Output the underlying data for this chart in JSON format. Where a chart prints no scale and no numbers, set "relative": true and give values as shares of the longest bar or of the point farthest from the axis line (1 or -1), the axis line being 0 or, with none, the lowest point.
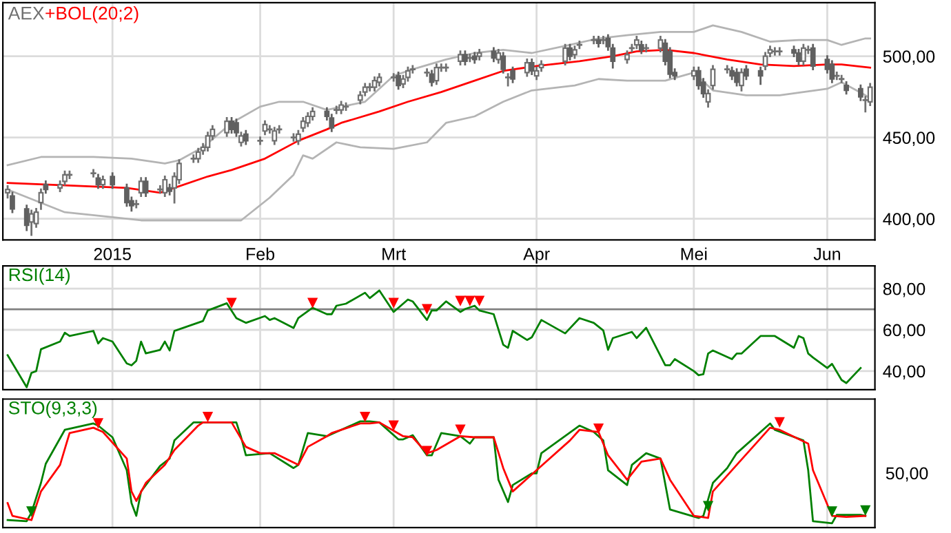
{
  "chart_data": [
    {
      "type": "candlestick",
      "title": "AEX",
      "xlim": [
        "2014-12-10",
        "2015-06-11"
      ],
      "ylim": [
        387,
        533
      ],
      "xticks": [
        {
          "value": "2015-01-02",
          "label": "2015"
        },
        {
          "value": "2015-02-02",
          "label": "Feb"
        },
        {
          "value": "2015-03-02",
          "label": "Mrt"
        },
        {
          "value": "2015-04-01",
          "label": "Apr"
        },
        {
          "value": "2015-05-04",
          "label": "Mei"
        },
        {
          "value": "2015-06-01",
          "label": "Jun"
        }
      ],
      "yticks": [
        {
          "value": 400,
          "label": "400,00"
        },
        {
          "value": 450,
          "label": "450,00"
        },
        {
          "value": 500,
          "label": "500,00"
        }
      ],
      "grid": true,
      "x": [
        "2014-12-11",
        "2014-12-12",
        "2014-12-15",
        "2014-12-16",
        "2014-12-17",
        "2014-12-18",
        "2014-12-19",
        "2014-12-22",
        "2014-12-23",
        "2014-12-24",
        "2014-12-29",
        "2014-12-30",
        "2014-12-31",
        "2015-01-02",
        "2015-01-05",
        "2015-01-06",
        "2015-01-07",
        "2015-01-08",
        "2015-01-09",
        "2015-01-12",
        "2015-01-13",
        "2015-01-14",
        "2015-01-15",
        "2015-01-16",
        "2015-01-19",
        "2015-01-20",
        "2015-01-21",
        "2015-01-22",
        "2015-01-23",
        "2015-01-26",
        "2015-01-27",
        "2015-01-28",
        "2015-01-29",
        "2015-01-30",
        "2015-02-02",
        "2015-02-03",
        "2015-02-04",
        "2015-02-05",
        "2015-02-06",
        "2015-02-09",
        "2015-02-10",
        "2015-02-11",
        "2015-02-12",
        "2015-02-13",
        "2015-02-16",
        "2015-02-17",
        "2015-02-18",
        "2015-02-19",
        "2015-02-20",
        "2015-02-23",
        "2015-02-24",
        "2015-02-25",
        "2015-02-26",
        "2015-02-27",
        "2015-03-02",
        "2015-03-03",
        "2015-03-04",
        "2015-03-05",
        "2015-03-06",
        "2015-03-09",
        "2015-03-10",
        "2015-03-11",
        "2015-03-12",
        "2015-03-13",
        "2015-03-16",
        "2015-03-17",
        "2015-03-18",
        "2015-03-19",
        "2015-03-20",
        "2015-03-23",
        "2015-03-24",
        "2015-03-25",
        "2015-03-26",
        "2015-03-27",
        "2015-03-30",
        "2015-03-31",
        "2015-04-01",
        "2015-04-02",
        "2015-04-07",
        "2015-04-08",
        "2015-04-09",
        "2015-04-10",
        "2015-04-13",
        "2015-04-14",
        "2015-04-15",
        "2015-04-16",
        "2015-04-17",
        "2015-04-20",
        "2015-04-21",
        "2015-04-22",
        "2015-04-23",
        "2015-04-24",
        "2015-04-27",
        "2015-04-28",
        "2015-04-29",
        "2015-04-30",
        "2015-05-04",
        "2015-05-05",
        "2015-05-06",
        "2015-05-07",
        "2015-05-08",
        "2015-05-11",
        "2015-05-12",
        "2015-05-13",
        "2015-05-14",
        "2015-05-15",
        "2015-05-18",
        "2015-05-19",
        "2015-05-20",
        "2015-05-21",
        "2015-05-22",
        "2015-05-25",
        "2015-05-26",
        "2015-05-27",
        "2015-05-28",
        "2015-05-29",
        "2015-06-01",
        "2015-06-02",
        "2015-06-03",
        "2015-06-04",
        "2015-06-05",
        "2015-06-08",
        "2015-06-09",
        "2015-06-10"
      ],
      "ohlc": [
        [
          416,
          420,
          413,
          418
        ],
        [
          414,
          416,
          404,
          406
        ],
        [
          406,
          408,
          393,
          396
        ],
        [
          398,
          405,
          390,
          403
        ],
        [
          397,
          406,
          395,
          404
        ],
        [
          410,
          418,
          406,
          416
        ],
        [
          421,
          423,
          416,
          418
        ],
        [
          419,
          423,
          417,
          421
        ],
        [
          423,
          429,
          421,
          427
        ],
        [
          427,
          429,
          425,
          427
        ],
        [
          428,
          430,
          426,
          428
        ],
        [
          425,
          427,
          419,
          421
        ],
        [
          421,
          426,
          419,
          424
        ],
        [
          426,
          428,
          419,
          421
        ],
        [
          419,
          421,
          408,
          410
        ],
        [
          411,
          413,
          405,
          408
        ],
        [
          409,
          411,
          407,
          409
        ],
        [
          416,
          425,
          414,
          423
        ],
        [
          423,
          425,
          414,
          416
        ],
        [
          418,
          420,
          416,
          418
        ],
        [
          416,
          426,
          414,
          424
        ],
        [
          419,
          421,
          415,
          417
        ],
        [
          419,
          428,
          410,
          426
        ],
        [
          424,
          436,
          422,
          434
        ],
        [
          437,
          439,
          435,
          437
        ],
        [
          437,
          443,
          435,
          441
        ],
        [
          442,
          446,
          440,
          444
        ],
        [
          444,
          453,
          442,
          451
        ],
        [
          451,
          457,
          449,
          455
        ],
        [
          453,
          462,
          451,
          460
        ],
        [
          460,
          462,
          453,
          455
        ],
        [
          459,
          461,
          451,
          453
        ],
        [
          447,
          453,
          445,
          451
        ],
        [
          452,
          454,
          446,
          448
        ],
        [
          448,
          450,
          446,
          448
        ],
        [
          454,
          460,
          452,
          458
        ],
        [
          455,
          457,
          453,
          455
        ],
        [
          448,
          456,
          446,
          454
        ],
        [
          455,
          457,
          453,
          455
        ],
        [
          450,
          452,
          448,
          450
        ],
        [
          448,
          454,
          446,
          452
        ],
        [
          456,
          462,
          454,
          460
        ],
        [
          459,
          465,
          457,
          463
        ],
        [
          463,
          468,
          461,
          466
        ],
        [
          466,
          468,
          461,
          463
        ],
        [
          462,
          464,
          454,
          456
        ],
        [
          467,
          469,
          465,
          467
        ],
        [
          467,
          472,
          465,
          470
        ],
        [
          469,
          471,
          467,
          469
        ],
        [
          473,
          478,
          471,
          476
        ],
        [
          478,
          483,
          476,
          481
        ],
        [
          481,
          483,
          479,
          481
        ],
        [
          481,
          487,
          479,
          485
        ],
        [
          484,
          489,
          482,
          487
        ],
        [
          487,
          489,
          485,
          487
        ],
        [
          488,
          490,
          480,
          482
        ],
        [
          483,
          488,
          481,
          486
        ],
        [
          487,
          493,
          485,
          491
        ],
        [
          492,
          494,
          490,
          492
        ],
        [
          490,
          492,
          488,
          490
        ],
        [
          489,
          491,
          482,
          484
        ],
        [
          485,
          495,
          483,
          493
        ],
        [
          493,
          495,
          491,
          493
        ],
        [
          493,
          495,
          491,
          493
        ],
        [
          497,
          503,
          495,
          501
        ],
        [
          501,
          503,
          495,
          497
        ],
        [
          499,
          501,
          497,
          499
        ],
        [
          500,
          502,
          496,
          498
        ],
        [
          500,
          504,
          498,
          502
        ],
        [
          503,
          505,
          497,
          499
        ],
        [
          498,
          504,
          496,
          502
        ],
        [
          500,
          502,
          490,
          492
        ],
        [
          487,
          489,
          482,
          487
        ],
        [
          491,
          493,
          484,
          486
        ],
        [
          490,
          498,
          488,
          496
        ],
        [
          496,
          498,
          489,
          491
        ],
        [
          488,
          493,
          486,
          491
        ],
        [
          493,
          497,
          491,
          495
        ],
        [
          497,
          507,
          495,
          505
        ],
        [
          505,
          507,
          498,
          500
        ],
        [
          501,
          506,
          499,
          504
        ],
        [
          507,
          509,
          505,
          507
        ],
        [
          510,
          512,
          508,
          510
        ],
        [
          510,
          512,
          506,
          508
        ],
        [
          510,
          512,
          508,
          510
        ],
        [
          511,
          513,
          504,
          506
        ],
        [
          505,
          507,
          493,
          497
        ],
        [
          498,
          503,
          496,
          501
        ],
        [
          505,
          507,
          503,
          505
        ],
        [
          507,
          512,
          505,
          510
        ],
        [
          507,
          509,
          502,
          504
        ],
        [
          505,
          507,
          503,
          505
        ],
        [
          505,
          512,
          503,
          510
        ],
        [
          508,
          510,
          495,
          497
        ],
        [
          503,
          505,
          487,
          489
        ],
        [
          490,
          492,
          486,
          488
        ],
        [
          488,
          493,
          486,
          491
        ],
        [
          491,
          493,
          480,
          482
        ],
        [
          484,
          486,
          475,
          477
        ],
        [
          472,
          479,
          469,
          477
        ],
        [
          482,
          494,
          480,
          492
        ],
        [
          492,
          494,
          490,
          492
        ],
        [
          491,
          493,
          486,
          488
        ],
        [
          490,
          492,
          482,
          484
        ],
        [
          482,
          492,
          479,
          490
        ],
        [
          492,
          494,
          486,
          488
        ],
        [
          491,
          493,
          483,
          488
        ],
        [
          494,
          502,
          492,
          500
        ],
        [
          502,
          506,
          500,
          504
        ],
        [
          503,
          505,
          501,
          503
        ],
        [
          503,
          505,
          501,
          503
        ],
        [
          504,
          506,
          500,
          502
        ],
        [
          502,
          504,
          495,
          497
        ],
        [
          497,
          507,
          495,
          505
        ],
        [
          504,
          506,
          502,
          504
        ],
        [
          505,
          507,
          492,
          494
        ],
        [
          498,
          500,
          490,
          492
        ],
        [
          495,
          497,
          484,
          486
        ],
        [
          488,
          490,
          486,
          488
        ],
        [
          486,
          488,
          484,
          486
        ],
        [
          482,
          484,
          477,
          479
        ],
        [
          480,
          482,
          473,
          475
        ],
        [
          473,
          475,
          466,
          473
        ],
        [
          472,
          483,
          470,
          481
        ]
      ],
      "series": [
        {
          "name": "+BOL(20;2)",
          "type": "line",
          "color": "#ff0000",
          "x": [
            "2014-12-11",
            "2015-01-05",
            "2015-01-12",
            "2015-01-15",
            "2015-01-22",
            "2015-01-27",
            "2015-02-03",
            "2015-02-10",
            "2015-02-16",
            "2015-02-19",
            "2015-02-27",
            "2015-03-05",
            "2015-03-12",
            "2015-03-19",
            "2015-03-25",
            "2015-04-01",
            "2015-04-10",
            "2015-04-17",
            "2015-04-22",
            "2015-04-28",
            "2015-05-04",
            "2015-05-11",
            "2015-05-18",
            "2015-05-25",
            "2015-06-01",
            "2015-06-04",
            "2015-06-10"
          ],
          "values": [
            422,
            419,
            416,
            419,
            426,
            430,
            437,
            448,
            455,
            459,
            466,
            472,
            478,
            485,
            491,
            494,
            497,
            500,
            503,
            504,
            502,
            498,
            495,
            494,
            495,
            495,
            493
          ]
        },
        {
          "type": "line",
          "color": "#b4b4b4",
          "x": [
            "2014-12-11",
            "2014-12-18",
            "2014-12-29",
            "2015-01-06",
            "2015-01-13",
            "2015-01-16",
            "2015-01-21",
            "2015-01-27",
            "2015-02-02",
            "2015-02-06",
            "2015-02-11",
            "2015-02-16",
            "2015-02-24",
            "2015-03-02",
            "2015-03-06",
            "2015-03-13",
            "2015-03-19",
            "2015-03-25",
            "2015-03-31",
            "2015-04-08",
            "2015-04-14",
            "2015-04-20",
            "2015-04-27",
            "2015-05-04",
            "2015-05-08",
            "2015-05-14",
            "2015-05-20",
            "2015-05-26",
            "2015-06-01",
            "2015-06-04",
            "2015-06-09",
            "2015-06-10"
          ],
          "values": [
            433,
            438,
            438,
            437,
            434,
            436,
            444,
            459,
            469,
            472,
            472,
            467,
            472,
            488,
            492,
            498,
            502,
            504,
            502,
            507,
            511,
            513,
            515,
            515,
            519,
            515,
            509,
            510,
            510,
            507,
            511,
            511
          ]
        },
        {
          "type": "line",
          "color": "#b4b4b4",
          "x": [
            "2014-12-11",
            "2014-12-23",
            "2015-01-02",
            "2015-01-08",
            "2015-01-21",
            "2015-01-29",
            "2015-02-04",
            "2015-02-09",
            "2015-02-11",
            "2015-02-13",
            "2015-02-18",
            "2015-02-23",
            "2015-03-02",
            "2015-03-09",
            "2015-03-13",
            "2015-03-19",
            "2015-03-25",
            "2015-03-31",
            "2015-04-09",
            "2015-04-14",
            "2015-04-20",
            "2015-04-28",
            "2015-05-04",
            "2015-05-08",
            "2015-05-15",
            "2015-05-22",
            "2015-06-01",
            "2015-06-04",
            "2015-06-09",
            "2015-06-10"
          ],
          "values": [
            418,
            404,
            401,
            399,
            399,
            399,
            413,
            427,
            439,
            437,
            447,
            444,
            443,
            447,
            459,
            463,
            472,
            479,
            482,
            486,
            485,
            485,
            490,
            479,
            476,
            476,
            480,
            484,
            476,
            474
          ]
        }
      ]
    },
    {
      "type": "line",
      "xlim": [
        "2014-12-10",
        "2015-06-11"
      ],
      "ylim": [
        31,
        91
      ],
      "tick_labels": "y",
      "grid": true,
      "xticks": [
        {
          "value": "2015-01-02",
          "label": null
        },
        {
          "value": "2015-02-02",
          "label": null
        },
        {
          "value": "2015-03-02",
          "label": null
        },
        {
          "value": "2015-04-01",
          "label": null
        },
        {
          "value": "2015-05-04",
          "label": null
        },
        {
          "value": "2015-06-01",
          "label": null
        }
      ],
      "yticks": [
        {
          "value": 40,
          "label": "40,00"
        },
        {
          "value": 60,
          "label": "60,00"
        },
        {
          "value": 80,
          "label": "80,00"
        }
      ],
      "ref_lines": [
        {
          "axis": "y",
          "value": 70,
          "color": "#808080"
        }
      ],
      "series": [
        {
          "name": "RSI(14)",
          "color": "#008000",
          "x": [
            "2014-12-11",
            "2014-12-15",
            "2014-12-16",
            "2014-12-17",
            "2014-12-18",
            "2014-12-22",
            "2014-12-23",
            "2014-12-24",
            "2014-12-29",
            "2014-12-30",
            "2014-12-31",
            "2015-01-02",
            "2015-01-05",
            "2015-01-06",
            "2015-01-07",
            "2015-01-08",
            "2015-01-09",
            "2015-01-12",
            "2015-01-13",
            "2015-01-14",
            "2015-01-15",
            "2015-01-21",
            "2015-01-22",
            "2015-01-26",
            "2015-01-28",
            "2015-01-30",
            "2015-02-03",
            "2015-02-04",
            "2015-02-05",
            "2015-02-09",
            "2015-02-10",
            "2015-02-13",
            "2015-02-16",
            "2015-02-17",
            "2015-02-18",
            "2015-02-20",
            "2015-02-24",
            "2015-02-25",
            "2015-02-27",
            "2015-03-02",
            "2015-03-05",
            "2015-03-06",
            "2015-03-09",
            "2015-03-10",
            "2015-03-11",
            "2015-03-13",
            "2015-03-16",
            "2015-03-17",
            "2015-03-19",
            "2015-03-20",
            "2015-03-23",
            "2015-03-25",
            "2015-03-26",
            "2015-03-27",
            "2015-03-30",
            "2015-03-31",
            "2015-04-02",
            "2015-04-07",
            "2015-04-10",
            "2015-04-13",
            "2015-04-15",
            "2015-04-16",
            "2015-04-17",
            "2015-04-21",
            "2015-04-22",
            "2015-04-24",
            "2015-04-28",
            "2015-04-29",
            "2015-04-30",
            "2015-05-04",
            "2015-05-05",
            "2015-05-06",
            "2015-05-07",
            "2015-05-08",
            "2015-05-12",
            "2015-05-13",
            "2015-05-14",
            "2015-05-18",
            "2015-05-21",
            "2015-05-25",
            "2015-05-26",
            "2015-05-27",
            "2015-05-28",
            "2015-05-29",
            "2015-06-01",
            "2015-06-02",
            "2015-06-04",
            "2015-06-05",
            "2015-06-08"
          ],
          "values": [
            47.7,
            32.2,
            39.1,
            40,
            50.6,
            54.3,
            58.6,
            57,
            59.5,
            53.4,
            56,
            54.3,
            43.7,
            42.8,
            45,
            54.3,
            48.6,
            50.3,
            54.3,
            50,
            59.5,
            64.3,
            69.4,
            72.9,
            65.7,
            63.4,
            66.7,
            64.8,
            65.7,
            60.9,
            65.7,
            70.7,
            67.6,
            67.6,
            71.7,
            72.7,
            78,
            75.4,
            79.1,
            68.7,
            74.7,
            73.8,
            64.8,
            69.4,
            69.4,
            73.8,
            68.7,
            70.1,
            71.7,
            69.4,
            67.6,
            52.8,
            51.3,
            59.5,
            55.1,
            56.4,
            64.8,
            58.3,
            65.7,
            63.4,
            59.7,
            50.3,
            56,
            59,
            56,
            61,
            42.8,
            42.8,
            45.8,
            40,
            38,
            38.5,
            48.5,
            50,
            45.8,
            48.5,
            48.5,
            57,
            57,
            51.3,
            57,
            56,
            48.5,
            46.6,
            41.5,
            43.5,
            35.7,
            34.2,
            41.5
          ]
        },
        {
          "type": "scatter",
          "marker": "triangle",
          "color": "#ff0000",
          "x": [
            "2015-01-27",
            "2015-02-13",
            "2015-03-02",
            "2015-03-09",
            "2015-03-16",
            "2015-03-18",
            "2015-03-20"
          ],
          "values": [
            73,
            73,
            73,
            70,
            74,
            74,
            74
          ]
        }
      ]
    },
    {
      "type": "line",
      "xlim": [
        "2014-12-10",
        "2015-06-11"
      ],
      "relative": true,
      "tick_labels": false,
      "grid": "x",
      "xticks": [
        {
          "value": "2015-01-02",
          "label": null
        },
        {
          "value": "2015-02-02",
          "label": null
        },
        {
          "value": "2015-03-02",
          "label": null
        },
        {
          "value": "2015-04-01",
          "label": null
        },
        {
          "value": "2015-05-04",
          "label": null
        },
        {
          "value": "2015-06-01",
          "label": null
        }
      ],
      "annotations": [
        "50,00"
      ],
      "series": [
        {
          "name": "STO(9,3,3)",
          "color": "#008000",
          "x": [
            "2014-12-11",
            "2014-12-15",
            "2014-12-16",
            "2014-12-18",
            "2014-12-19",
            "2014-12-23",
            "2014-12-29",
            "2014-12-30",
            "2015-01-02",
            "2015-01-05",
            "2015-01-06",
            "2015-01-07",
            "2015-01-08",
            "2015-01-12",
            "2015-01-14",
            "2015-01-15",
            "2015-01-19",
            "2015-01-21",
            "2015-01-28",
            "2015-01-29",
            "2015-01-30",
            "2015-02-04",
            "2015-02-09",
            "2015-02-10",
            "2015-02-12",
            "2015-02-16",
            "2015-02-18",
            "2015-02-23",
            "2015-02-25",
            "2015-02-27",
            "2015-03-03",
            "2015-03-04",
            "2015-03-06",
            "2015-03-09",
            "2015-03-10",
            "2015-03-12",
            "2015-03-16",
            "2015-03-18",
            "2015-03-19",
            "2015-03-23",
            "2015-03-24",
            "2015-03-26",
            "2015-03-27",
            "2015-03-31",
            "2015-04-01",
            "2015-04-02",
            "2015-04-10",
            "2015-04-13",
            "2015-04-15",
            "2015-04-16",
            "2015-04-20",
            "2015-04-21",
            "2015-04-24",
            "2015-04-27",
            "2015-04-29",
            "2015-05-05",
            "2015-05-06",
            "2015-05-08",
            "2015-05-11",
            "2015-05-13",
            "2015-05-20",
            "2015-05-21",
            "2015-05-27",
            "2015-05-28",
            "2015-05-29",
            "2015-06-02",
            "2015-06-03",
            "2015-06-08",
            "2015-06-09"
          ],
          "values": [
            0.03,
            0.02,
            0.1,
            0.38,
            0.56,
            0.88,
            0.94,
            0.92,
            0.81,
            0.5,
            0.19,
            0.07,
            0.3,
            0.54,
            0.61,
            0.78,
            0.95,
            0.95,
            0.95,
            0.81,
            0.64,
            0.66,
            0.52,
            0.55,
            0.85,
            0.82,
            0.86,
            0.96,
            0.96,
            0.95,
            0.79,
            0.79,
            0.83,
            0.64,
            0.64,
            0.85,
            0.82,
            0.75,
            0.81,
            0.81,
            0.41,
            0.2,
            0.36,
            0.47,
            0.47,
            0.66,
            0.92,
            0.86,
            0.78,
            0.5,
            0.36,
            0.55,
            0.66,
            0.61,
            0.13,
            0.05,
            0.07,
            0.38,
            0.52,
            0.66,
            0.94,
            0.88,
            0.78,
            0.5,
            0.02,
            0,
            0.08,
            0.08,
            0.07
          ]
        },
        {
          "color": "#ff0000",
          "x": [
            "2014-12-11",
            "2014-12-12",
            "2014-12-16",
            "2014-12-18",
            "2014-12-22",
            "2014-12-24",
            "2014-12-29",
            "2014-12-31",
            "2015-01-05",
            "2015-01-06",
            "2015-01-07",
            "2015-01-09",
            "2015-01-13",
            "2015-01-15",
            "2015-01-20",
            "2015-01-21",
            "2015-01-27",
            "2015-01-30",
            "2015-02-02",
            "2015-02-05",
            "2015-02-10",
            "2015-02-12",
            "2015-02-16",
            "2015-02-17",
            "2015-02-23",
            "2015-02-25",
            "2015-02-27",
            "2015-03-04",
            "2015-03-06",
            "2015-03-09",
            "2015-03-11",
            "2015-03-16",
            "2015-03-19",
            "2015-03-23",
            "2015-03-25",
            "2015-03-27",
            "2015-04-01",
            "2015-04-08",
            "2015-04-10",
            "2015-04-14",
            "2015-04-16",
            "2015-04-20",
            "2015-04-23",
            "2015-04-27",
            "2015-04-29",
            "2015-05-04",
            "2015-05-07",
            "2015-05-08",
            "2015-05-13",
            "2015-05-20",
            "2015-05-22",
            "2015-05-28",
            "2015-05-29",
            "2015-06-02",
            "2015-06-05",
            "2015-06-09"
          ],
          "values": [
            0.19,
            0.07,
            0.03,
            0.3,
            0.55,
            0.85,
            0.9,
            0.86,
            0.61,
            0.3,
            0.21,
            0.38,
            0.55,
            0.69,
            0.92,
            0.95,
            0.95,
            0.72,
            0.66,
            0.66,
            0.55,
            0.72,
            0.82,
            0.85,
            0.94,
            0.94,
            0.95,
            0.82,
            0.81,
            0.66,
            0.69,
            0.82,
            0.81,
            0.81,
            0.52,
            0.3,
            0.5,
            0.78,
            0.88,
            0.86,
            0.64,
            0.41,
            0.58,
            0.61,
            0.41,
            0.07,
            0.05,
            0.3,
            0.55,
            0.9,
            0.88,
            0.75,
            0.5,
            0.07,
            0.06,
            0.07
          ]
        },
        {
          "type": "scatter",
          "marker": "triangle",
          "color": "#ff0000",
          "x": [
            "2014-12-30",
            "2015-01-22",
            "2015-02-24",
            "2015-03-02",
            "2015-03-09",
            "2015-03-16",
            "2015-04-14",
            "2015-05-22"
          ],
          "values": [
            0.94,
            1,
            1,
            0.92,
            0.68,
            0.88,
            0.89,
            0.95
          ]
        },
        {
          "type": "scatter",
          "marker": "triangle",
          "color": "#008000",
          "x": [
            "2014-12-16",
            "2015-05-07",
            "2015-06-02",
            "2015-06-09"
          ],
          "values": [
            0.11,
            0.16,
            0.11,
            0.12
          ]
        }
      ]
    }
  ]
}
